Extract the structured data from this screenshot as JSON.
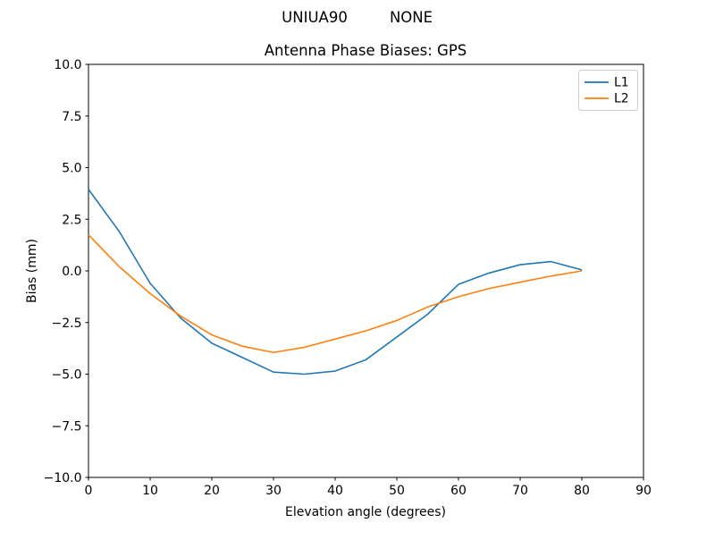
{
  "header": {
    "left_text": "UNIUA90",
    "right_text": "NONE"
  },
  "chart_data": {
    "type": "line",
    "title": "Antenna Phase Biases: GPS",
    "xlabel": "Elevation angle (degrees)",
    "ylabel": "Bias (mm)",
    "xlim": [
      0,
      90
    ],
    "ylim": [
      -10,
      10
    ],
    "xticks": [
      0,
      10,
      20,
      30,
      40,
      50,
      60,
      70,
      80,
      90
    ],
    "yticks": [
      10,
      7.5,
      5,
      2.5,
      0,
      -2.5,
      -5,
      -7.5,
      -10
    ],
    "ytick_labels": [
      "10.0",
      "7.5",
      "5.0",
      "2.5",
      "0.0",
      "−2.5",
      "−5.0",
      "−7.5",
      "−10.0"
    ],
    "grid": false,
    "legend_position": "upper right",
    "x": [
      0,
      5,
      10,
      15,
      20,
      25,
      30,
      35,
      40,
      45,
      50,
      55,
      60,
      65,
      70,
      75,
      80
    ],
    "series": [
      {
        "name": "L1",
        "color": "#1f77b4",
        "values": [
          3.95,
          1.9,
          -0.6,
          -2.3,
          -3.5,
          -4.2,
          -4.9,
          -5.0,
          -4.85,
          -4.3,
          -3.2,
          -2.1,
          -0.65,
          -0.1,
          0.3,
          0.45,
          0.05
        ]
      },
      {
        "name": "L2",
        "color": "#ff7f0e",
        "values": [
          1.75,
          0.2,
          -1.1,
          -2.2,
          -3.1,
          -3.65,
          -3.95,
          -3.7,
          -3.3,
          -2.9,
          -2.4,
          -1.75,
          -1.25,
          -0.85,
          -0.55,
          -0.25,
          0.0
        ]
      }
    ]
  }
}
